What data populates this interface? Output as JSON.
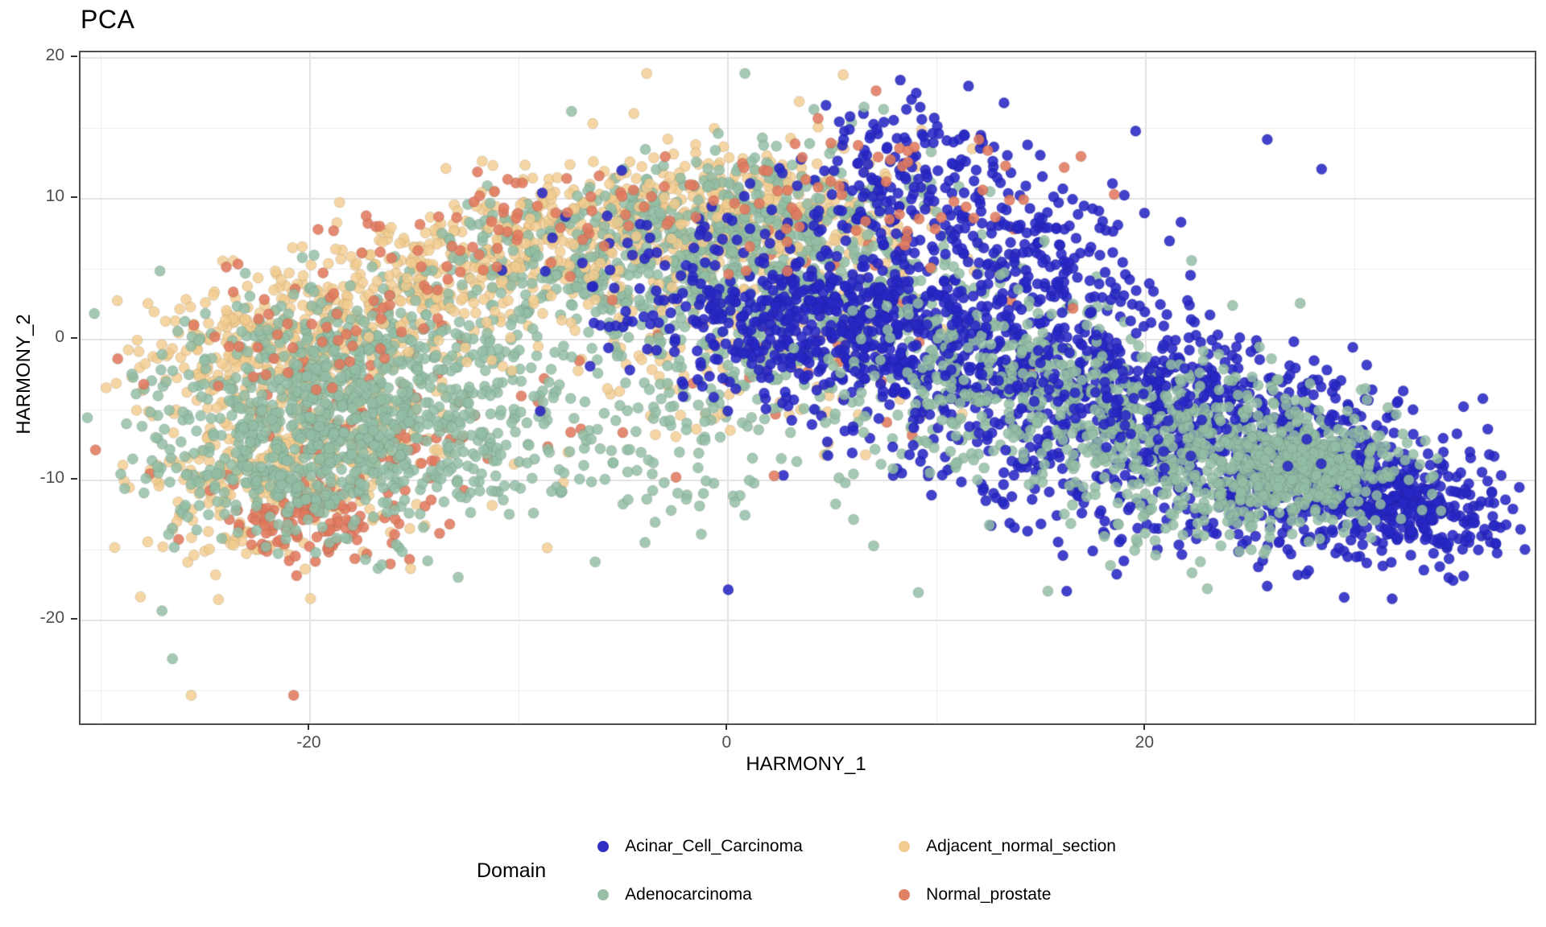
{
  "title": "PCA",
  "colors": {
    "panel_border": "#4f4f4f",
    "grid_major": "#e4e4e4",
    "grid_minor": "#efefef",
    "tick_text": "#4d4d4d",
    "acinar_blue": "#2727c4",
    "adeno_green": "#93bda4",
    "adjacent_tan": "#f2cc8f",
    "normal_salmon": "#e07a5f"
  },
  "chart_data": {
    "type": "scatter",
    "title": "PCA",
    "xlabel": "HARMONY_1",
    "ylabel": "HARMONY_2",
    "x_ticks": [
      -20,
      0,
      20
    ],
    "y_ticks": [
      20,
      10,
      0,
      -10,
      -20
    ],
    "x_minor": [
      -30,
      -10,
      10,
      30
    ],
    "y_minor": [
      15,
      5,
      -5,
      -15,
      -25
    ],
    "x_range": [
      -31.0,
      38.6
    ],
    "y_range": [
      -27.3,
      20.4
    ],
    "grid": true,
    "point_radius_px": 6.6,
    "legend": {
      "title": "Domain",
      "position": "bottom",
      "entries": [
        {
          "label": "Acinar_Cell_Carcinoma",
          "color": "#2f2fc6"
        },
        {
          "label": "Adenocarcinoma",
          "color": "#9abfa7"
        },
        {
          "label": "Adjacent_normal_section",
          "color": "#f2cc8f"
        },
        {
          "label": "Normal_prostate",
          "color": "#e08265"
        }
      ]
    },
    "series": [
      {
        "name": "Adjacent_normal_section",
        "color": "#f2cc8f",
        "alpha": 0.82,
        "outliers_layer": 35,
        "clusters": [
          {
            "kind": "band",
            "from": [
              -26,
              -2
            ],
            "to": [
              -6,
              9
            ],
            "sd": [
              2.2,
              2.2
            ],
            "n": 540,
            "layer": 10
          },
          {
            "kind": "band",
            "from": [
              -6,
              9
            ],
            "to": [
              6,
              9.5
            ],
            "sd": [
              2.3,
              2.3
            ],
            "n": 310,
            "layer": 10
          },
          {
            "kind": "gauss",
            "c": [
              -20,
              -6
            ],
            "sd": [
              3.5,
              3.5
            ],
            "n": 300,
            "layer": 10
          },
          {
            "kind": "gauss",
            "c": [
              -23,
              -11
            ],
            "sd": [
              2.5,
              2.5
            ],
            "n": 130,
            "layer": 10
          },
          {
            "kind": "band",
            "from": [
              -2,
              2
            ],
            "to": [
              8,
              6
            ],
            "sd": [
              3,
              3
            ],
            "n": 130,
            "layer": 10
          },
          {
            "kind": "gauss",
            "c": [
              0,
              -3
            ],
            "sd": [
              5,
              3
            ],
            "n": 60,
            "layer": 10
          },
          {
            "kind": "band",
            "from": [
              -16,
              2
            ],
            "to": [
              0,
              8
            ],
            "sd": [
              2.5,
              2.5
            ],
            "n": 130,
            "layer": 35
          }
        ],
        "outliers": [
          [
            -25.7,
            -25.3
          ],
          [
            -24.4,
            -18.5
          ],
          [
            -15.2,
            -16.3
          ],
          [
            -0.3,
            -5.3
          ],
          [
            11.2,
            -5.3
          ],
          [
            4.8,
            -7.4
          ],
          [
            -3.9,
            18.9
          ],
          [
            5.5,
            18.8
          ],
          [
            3.4,
            16.9
          ],
          [
            -11.3,
            -11.8
          ]
        ]
      },
      {
        "name": "Normal_prostate_base",
        "color": "#e07a5f",
        "alpha": 0.88,
        "outliers_layer": 55,
        "clusters": [
          {
            "kind": "gauss",
            "c": [
              -20.5,
              -12.8
            ],
            "sd": [
              2.2,
              1.6
            ],
            "n": 115,
            "layer": 20
          },
          {
            "kind": "gauss",
            "c": [
              -16,
              -6
            ],
            "sd": [
              4,
              3.5
            ],
            "n": 85,
            "layer": 20
          },
          {
            "kind": "gauss",
            "c": [
              2,
              1
            ],
            "sd": [
              5,
              4
            ],
            "n": 35,
            "layer": 20
          },
          {
            "kind": "gauss",
            "c": [
              9,
              -3
            ],
            "sd": [
              4,
              3
            ],
            "n": 12,
            "layer": 20
          },
          {
            "kind": "band",
            "from": [
              -24,
              0
            ],
            "to": [
              -8,
              8.5
            ],
            "sd": [
              2.5,
              2.5
            ],
            "n": 95,
            "layer": 55
          },
          {
            "kind": "band",
            "from": [
              -6,
              9
            ],
            "to": [
              10,
              11
            ],
            "sd": [
              2.5,
              2
            ],
            "n": 60,
            "layer": 55
          },
          {
            "kind": "gauss",
            "c": [
              12,
              10
            ],
            "sd": [
              3,
              2.5
            ],
            "n": 18,
            "layer": 55
          }
        ],
        "outliers": [
          [
            -20.8,
            -25.3
          ],
          [
            -12,
            11.9
          ],
          [
            -11.9,
            10.2
          ],
          [
            3.2,
            13.9
          ],
          [
            12,
            14.2
          ],
          [
            -2.5,
            -9.8
          ],
          [
            2.2,
            -9.7
          ],
          [
            16.5,
            2.2
          ],
          [
            4.3,
            15.7
          ],
          [
            8.6,
            12.6
          ]
        ]
      },
      {
        "name": "Adenocarcinoma",
        "color": "#93bda4",
        "alpha": 0.84,
        "outliers_layer": 50,
        "clusters": [
          {
            "kind": "gauss",
            "c": [
              -17.5,
              -4.5
            ],
            "sd": [
              4.5,
              4
            ],
            "n": 820,
            "layer": 30
          },
          {
            "kind": "gauss",
            "c": [
              -22,
              -9
            ],
            "sd": [
              3,
              2.5
            ],
            "n": 200,
            "layer": 30
          },
          {
            "kind": "band",
            "from": [
              -8,
              4
            ],
            "to": [
              6,
              8
            ],
            "sd": [
              3.2,
              3.2
            ],
            "n": 560,
            "layer": 30
          },
          {
            "kind": "band",
            "from": [
              -2,
              -1
            ],
            "to": [
              12,
              2
            ],
            "sd": [
              3.5,
              3.5
            ],
            "n": 300,
            "layer": 30
          },
          {
            "kind": "band",
            "from": [
              -14,
              4
            ],
            "to": [
              2,
              11
            ],
            "sd": [
              2,
              2
            ],
            "n": 130,
            "layer": 30
          },
          {
            "kind": "gauss",
            "c": [
              -4,
              -8
            ],
            "sd": [
              6,
              3
            ],
            "n": 110,
            "layer": 30
          },
          {
            "kind": "band",
            "from": [
              10,
              -2
            ],
            "to": [
              26,
              -8
            ],
            "sd": [
              3.2,
              3.2
            ],
            "n": 600,
            "layer": 50
          },
          {
            "kind": "gauss",
            "c": [
              27.5,
              -9
            ],
            "sd": [
              2.2,
              1.7
            ],
            "n": 340,
            "layer": 50
          },
          {
            "kind": "gauss",
            "c": [
              24,
              -11
            ],
            "sd": [
              3,
              2
            ],
            "n": 120,
            "layer": 50
          }
        ],
        "outliers": [
          [
            -27.1,
            -19.3
          ],
          [
            -26.6,
            -22.7
          ],
          [
            -28.5,
            -8.5
          ],
          [
            -28.8,
            -6
          ],
          [
            15.3,
            -17.9
          ],
          [
            9.1,
            -18
          ],
          [
            5.6,
            -10.2
          ],
          [
            0.8,
            -12.5
          ],
          [
            -3.5,
            -13
          ],
          [
            12.5,
            -13.2
          ],
          [
            18,
            -14
          ],
          [
            6.5,
            16.5
          ],
          [
            0.8,
            18.9
          ],
          [
            -7.5,
            16.2
          ],
          [
            30.5,
            -3.5
          ],
          [
            6,
            -12.8
          ]
        ]
      },
      {
        "name": "Acinar_Cell_Carcinoma",
        "color": "#2727c4",
        "alpha": 0.88,
        "outliers_layer": 60,
        "clusters": [
          {
            "kind": "band",
            "from": [
              2,
              3
            ],
            "to": [
              30,
              -9
            ],
            "sd": [
              3.2,
              3.2
            ],
            "n": 1100,
            "skew": 0.75,
            "layer": 40
          },
          {
            "kind": "gauss",
            "c": [
              31,
              -11
            ],
            "sd": [
              2.6,
              2
            ],
            "n": 280,
            "layer": 40
          },
          {
            "kind": "band",
            "from": [
              6,
              11
            ],
            "to": [
              17,
              5
            ],
            "sd": [
              2.6,
              2.6
            ],
            "n": 280,
            "layer": 40
          },
          {
            "kind": "gauss",
            "c": [
              4,
              1
            ],
            "sd": [
              4,
              3
            ],
            "n": 320,
            "layer": 40
          },
          {
            "kind": "band",
            "from": [
              8,
              -8
            ],
            "to": [
              30,
              -14
            ],
            "sd": [
              2.2,
              2.2
            ],
            "n": 180,
            "skew": 0.9,
            "layer": 40
          },
          {
            "kind": "gauss",
            "c": [
              34,
              -13
            ],
            "sd": [
              1.8,
              1.5
            ],
            "n": 90,
            "layer": 40
          },
          {
            "kind": "gauss",
            "c": [
              9,
              14
            ],
            "sd": [
              2.5,
              1.6
            ],
            "n": 45,
            "layer": 40
          },
          {
            "kind": "gauss",
            "c": [
              -3,
              4
            ],
            "sd": [
              3,
              3
            ],
            "n": 60,
            "layer": 40
          },
          {
            "kind": "band",
            "from": [
              12,
              0
            ],
            "to": [
              24,
              -5
            ],
            "sd": [
              3,
              3
            ],
            "n": 130,
            "layer": 60
          }
        ],
        "outliers": [
          [
            0,
            -17.8
          ],
          [
            16.2,
            -17.9
          ],
          [
            36.2,
            -13.5
          ],
          [
            36.8,
            -15.2
          ],
          [
            34.5,
            -15.6
          ],
          [
            25.8,
            14.2
          ],
          [
            28.4,
            12.1
          ],
          [
            19.5,
            14.8
          ],
          [
            13.2,
            16.8
          ],
          [
            9,
            17.5
          ],
          [
            -8.9,
            10.4
          ],
          [
            -5.1,
            12
          ],
          [
            37.2,
            -11.4
          ],
          [
            35.5,
            -8
          ],
          [
            -9,
            -5.1
          ],
          [
            11.5,
            18
          ]
        ]
      }
    ]
  }
}
